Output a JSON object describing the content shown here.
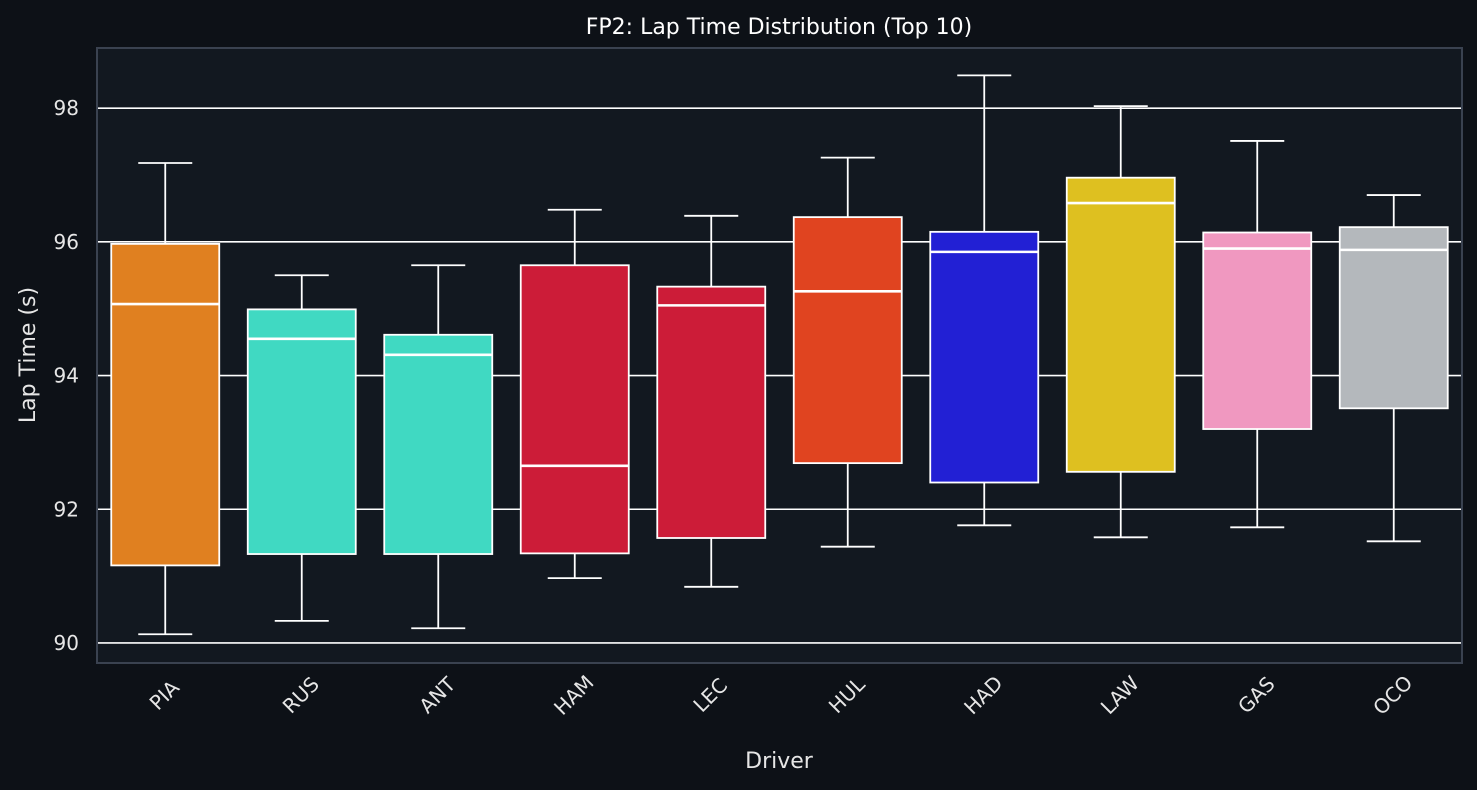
{
  "chart_data": {
    "type": "box",
    "title": "FP2: Lap Time Distribution (Top 10)",
    "xlabel": "Driver",
    "ylabel": "Lap Time (s)",
    "ylim": [
      89.7,
      98.9
    ],
    "yticks": [
      90,
      92,
      94,
      96,
      98
    ],
    "grid": true,
    "background": "#0d1117",
    "plot_background": "#121820",
    "categories": [
      "PIA",
      "RUS",
      "ANT",
      "HAM",
      "LEC",
      "HUL",
      "HAD",
      "LAW",
      "GAS",
      "OCO"
    ],
    "boxes": [
      {
        "driver": "PIA",
        "whisker_low": 90.13,
        "q1": 91.16,
        "median": 95.07,
        "q3": 95.97,
        "whisker_high": 97.18,
        "color": "#e08020"
      },
      {
        "driver": "RUS",
        "whisker_low": 90.33,
        "q1": 91.33,
        "median": 94.55,
        "q3": 94.99,
        "whisker_high": 95.5,
        "color": "#40d9c2"
      },
      {
        "driver": "ANT",
        "whisker_low": 90.22,
        "q1": 91.33,
        "median": 94.31,
        "q3": 94.61,
        "whisker_high": 95.65,
        "color": "#40d9c2"
      },
      {
        "driver": "HAM",
        "whisker_low": 90.97,
        "q1": 91.34,
        "median": 92.65,
        "q3": 95.65,
        "whisker_high": 96.48,
        "color": "#cc1c38"
      },
      {
        "driver": "LEC",
        "whisker_low": 90.84,
        "q1": 91.57,
        "median": 95.05,
        "q3": 95.33,
        "whisker_high": 96.39,
        "color": "#cc1c38"
      },
      {
        "driver": "HUL",
        "whisker_low": 91.44,
        "q1": 92.69,
        "median": 95.26,
        "q3": 96.37,
        "whisker_high": 97.26,
        "color": "#e04420"
      },
      {
        "driver": "HAD",
        "whisker_low": 91.76,
        "q1": 92.4,
        "median": 95.85,
        "q3": 96.15,
        "whisker_high": 98.49,
        "color": "#2220d4"
      },
      {
        "driver": "LAW",
        "whisker_low": 91.58,
        "q1": 92.56,
        "median": 96.58,
        "q3": 96.96,
        "whisker_high": 98.03,
        "color": "#dec020"
      },
      {
        "driver": "GAS",
        "whisker_low": 91.73,
        "q1": 93.2,
        "median": 95.9,
        "q3": 96.14,
        "whisker_high": 97.51,
        "color": "#f098c0"
      },
      {
        "driver": "OCO",
        "whisker_low": 91.52,
        "q1": 93.51,
        "median": 95.88,
        "q3": 96.22,
        "whisker_high": 96.7,
        "color": "#b4b8bc"
      }
    ]
  }
}
